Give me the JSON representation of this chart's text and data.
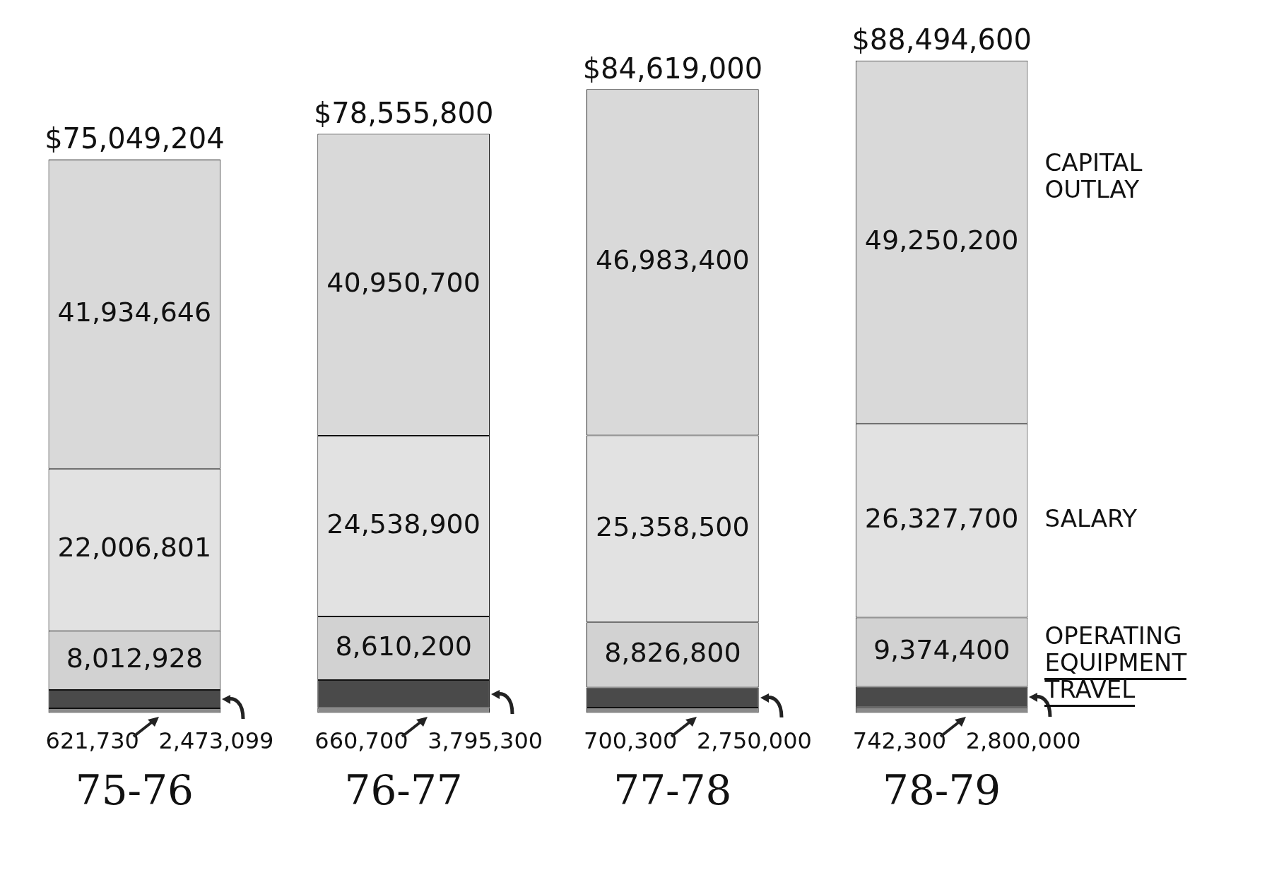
{
  "chart_data": {
    "type": "bar",
    "stacked": true,
    "categories": [
      "75-76",
      "76-77",
      "77-78",
      "78-79"
    ],
    "series": [
      {
        "name": "TRAVEL",
        "color": "#8a8a8a",
        "values": [
          621730,
          660700,
          700300,
          742300
        ],
        "value_labels": [
          "621,730",
          "660,700",
          "700,300",
          "742,300"
        ]
      },
      {
        "name": "EQUIPMENT",
        "color": "#4a4a4a",
        "values": [
          2473099,
          3795300,
          2750000,
          2800000
        ],
        "value_labels": [
          "2,473,099",
          "3,795,300",
          "2,750,000",
          "2,800,000"
        ]
      },
      {
        "name": "OPERATING",
        "color": "#d2d2d2",
        "values": [
          8012928,
          8610200,
          8826800,
          9374400
        ],
        "value_labels": [
          "8,012,928",
          "8,610,200",
          "8,826,800",
          "9,374,400"
        ]
      },
      {
        "name": "SALARY",
        "color": "#e2e2e2",
        "values": [
          22006801,
          24538900,
          25358500,
          26327700
        ],
        "value_labels": [
          "22,006,801",
          "24,538,900",
          "25,358,500",
          "26,327,700"
        ]
      },
      {
        "name": "CAPITAL OUTLAY",
        "color": "#d9d9d9",
        "values": [
          41934646,
          40950700,
          46983400,
          49250200
        ],
        "value_labels": [
          "41,934,646",
          "40,950,700",
          "46,983,400",
          "49,250,200"
        ]
      }
    ],
    "totals": [
      "$75,049,204",
      "$78,555,800",
      "$84,619,000",
      "$88,494,600"
    ],
    "legend": false,
    "grid": false
  }
}
